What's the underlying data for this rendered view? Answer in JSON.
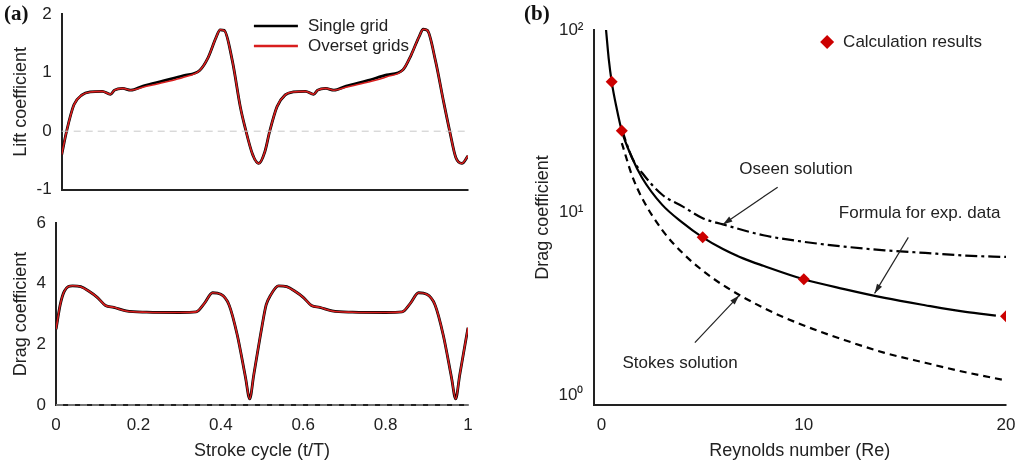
{
  "chart_data": [
    {
      "type": "line",
      "title": "(a)",
      "ylabel": "Lift coefficient",
      "legend": "top right",
      "tick_labels": "y",
      "x": [
        0,
        0.012,
        0.03,
        0.05,
        0.07,
        0.1,
        0.12,
        0.13,
        0.15,
        0.17,
        0.2,
        0.25,
        0.3,
        0.34,
        0.36,
        0.38,
        0.39,
        0.4,
        0.42,
        0.44,
        0.45,
        0.47,
        0.485,
        0.5,
        0.512,
        0.53,
        0.55,
        0.57,
        0.6,
        0.62,
        0.63,
        0.65,
        0.67,
        0.7,
        0.75,
        0.8,
        0.84,
        0.86,
        0.88,
        0.89,
        0.9,
        0.92,
        0.94,
        0.955,
        0.97,
        0.985,
        1
      ],
      "series": [
        {
          "name": "Single grid",
          "color": "#000000",
          "values": [
            -0.4,
            0,
            0.45,
            0.62,
            0.67,
            0.68,
            0.63,
            0.7,
            0.73,
            0.7,
            0.77,
            0.86,
            0.95,
            1.04,
            1.25,
            1.6,
            1.73,
            1.72,
            1.2,
            0.4,
            0.1,
            -0.4,
            -0.55,
            -0.35,
            0,
            0.42,
            0.62,
            0.67,
            0.68,
            0.63,
            0.7,
            0.73,
            0.7,
            0.77,
            0.86,
            0.96,
            1.05,
            1.3,
            1.62,
            1.74,
            1.72,
            1.2,
            0.5,
            0,
            -0.45,
            -0.55,
            -0.42
          ]
        },
        {
          "name": "Overset grids",
          "color": "#d81e1e",
          "values": [
            -0.4,
            0,
            0.45,
            0.62,
            0.67,
            0.68,
            0.63,
            0.7,
            0.73,
            0.7,
            0.75,
            0.83,
            0.92,
            1.04,
            1.25,
            1.6,
            1.73,
            1.72,
            1.2,
            0.4,
            0.1,
            -0.4,
            -0.55,
            -0.35,
            0,
            0.42,
            0.62,
            0.67,
            0.68,
            0.63,
            0.7,
            0.73,
            0.7,
            0.75,
            0.83,
            0.93,
            1.05,
            1.3,
            1.62,
            1.74,
            1.72,
            1.2,
            0.5,
            0,
            -0.45,
            -0.55,
            -0.42
          ]
        }
      ],
      "xlim": [
        0,
        1
      ],
      "xticks": [
        0,
        0.2,
        0.4,
        0.6,
        0.8,
        1
      ],
      "ylim": [
        -1,
        2
      ],
      "yticks": [
        -1,
        0,
        1,
        2
      ],
      "ref_lines": [
        {
          "axis": "y",
          "value": 0,
          "color": "#c8c8c8",
          "line_style": "dashed"
        }
      ]
    },
    {
      "type": "line",
      "xlabel": "Stroke cycle (t/T)",
      "ylabel": "Drag coefficient",
      "x": [
        0,
        0.01,
        0.02,
        0.04,
        0.06,
        0.08,
        0.1,
        0.12,
        0.14,
        0.17,
        0.22,
        0.3,
        0.34,
        0.36,
        0.38,
        0.4,
        0.42,
        0.44,
        0.46,
        0.47,
        0.48,
        0.5,
        0.51,
        0.52,
        0.54,
        0.56,
        0.58,
        0.6,
        0.62,
        0.64,
        0.67,
        0.72,
        0.8,
        0.84,
        0.86,
        0.88,
        0.9,
        0.92,
        0.94,
        0.96,
        0.97,
        0.98,
        1
      ],
      "series": [
        {
          "color": "#000000",
          "values": [
            2.5,
            3.3,
            3.75,
            3.93,
            3.9,
            3.75,
            3.55,
            3.28,
            3.22,
            3.1,
            3.06,
            3.05,
            3.07,
            3.35,
            3.7,
            3.65,
            3.3,
            2.3,
            0.9,
            0.2,
            1.0,
            2.6,
            3.3,
            3.6,
            3.93,
            3.9,
            3.75,
            3.55,
            3.28,
            3.22,
            3.1,
            3.06,
            3.05,
            3.07,
            3.35,
            3.7,
            3.65,
            3.3,
            2.3,
            0.9,
            0.2,
            1.0,
            2.55
          ]
        },
        {
          "color": "#d81e1e",
          "values": [
            2.5,
            3.3,
            3.75,
            3.93,
            3.9,
            3.75,
            3.55,
            3.28,
            3.22,
            3.1,
            3.06,
            3.05,
            3.07,
            3.35,
            3.7,
            3.65,
            3.3,
            2.3,
            0.9,
            0.2,
            1.0,
            2.6,
            3.3,
            3.6,
            3.93,
            3.9,
            3.75,
            3.55,
            3.28,
            3.22,
            3.1,
            3.06,
            3.05,
            3.07,
            3.35,
            3.7,
            3.65,
            3.3,
            2.3,
            0.9,
            0.2,
            1.0,
            2.55
          ]
        }
      ],
      "xlim": [
        0,
        1
      ],
      "xticks": [
        0,
        0.2,
        0.4,
        0.6,
        0.8,
        1
      ],
      "ylim": [
        0,
        6
      ],
      "yticks": [
        0,
        2,
        4,
        6
      ],
      "ref_lines": [
        {
          "axis": "y",
          "value": 0,
          "color": "#c8c8c8",
          "line_style": "dashed"
        }
      ]
    },
    {
      "type": "line",
      "title": "(b)",
      "xlabel": "Reynolds number (Re)",
      "ylabel": "Drag coefficient",
      "log": "y",
      "legend": "top right",
      "series": [
        {
          "color": "#000000",
          "line_style": "solid",
          "x": [
            0.22,
            0.35,
            0.5,
            0.75,
            1,
            1.5,
            2,
            3,
            4,
            5,
            6,
            7,
            8,
            10,
            12,
            14,
            16,
            18,
            19.5
          ],
          "values": [
            100,
            70,
            52,
            37,
            28,
            20,
            15.5,
            11,
            8.8,
            7.3,
            6.3,
            5.6,
            5.1,
            4.3,
            3.8,
            3.4,
            3.1,
            2.85,
            2.72
          ]
        },
        {
          "color": "#000000",
          "line_style": "dashdot",
          "x": [
            1,
            1.5,
            2,
            3,
            4,
            5,
            6,
            8,
            10,
            12,
            14,
            16,
            18,
            20
          ],
          "values": [
            28.5,
            20,
            16.5,
            12.5,
            10.8,
            9.3,
            8.6,
            7.5,
            6.9,
            6.5,
            6.2,
            6.0,
            5.8,
            5.7
          ]
        },
        {
          "color": "#000000",
          "line_style": "dashed",
          "x": [
            1,
            1.5,
            2,
            3,
            4,
            5,
            6,
            8,
            10,
            12,
            14,
            16,
            18,
            20
          ],
          "values": [
            24,
            16,
            12,
            8,
            6,
            4.8,
            4,
            3,
            2.4,
            2,
            1.7,
            1.5,
            1.33,
            1.2
          ]
        },
        {
          "type": "scatter",
          "name": "Calculation results",
          "color": "#cc0000",
          "marker": "diamond",
          "x": [
            0.5,
            1,
            5,
            10,
            20
          ],
          "values": [
            52,
            28,
            7.3,
            4.3,
            2.7
          ]
        }
      ],
      "xlim": [
        -0.4,
        20
      ],
      "xticks": [
        0,
        10,
        20
      ],
      "ylim": [
        0.88,
        100
      ],
      "yticks": [
        {
          "value": 1,
          "label": "10⁰"
        },
        {
          "value": 10,
          "label": "10¹"
        },
        {
          "value": 100,
          "label": "10²"
        }
      ],
      "annotations": [
        {
          "text": "Oseen solution",
          "x": 6,
          "y": 8.6
        },
        {
          "text": "Formula for exp. data",
          "x": 13.5,
          "y": 3.6
        },
        {
          "text": "Stokes solution",
          "x": 6.8,
          "y": 3.5
        }
      ]
    }
  ]
}
